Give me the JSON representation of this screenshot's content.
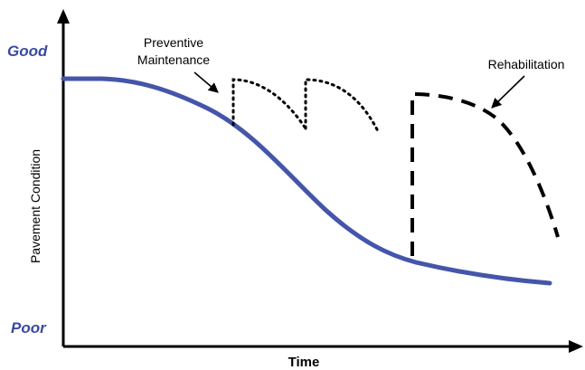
{
  "axes": {
    "x_label": "Time",
    "y_label": "Pavement Condition"
  },
  "y_scale": {
    "top": "Good",
    "bottom": "Poor"
  },
  "annotations": {
    "preventive_line1": "Preventive",
    "preventive_line2": "Maintenance",
    "rehabilitation": "Rehabilitation"
  },
  "colors": {
    "curve": "#4455aa",
    "scale_label": "#3a4aa3",
    "ink": "#000000"
  }
}
